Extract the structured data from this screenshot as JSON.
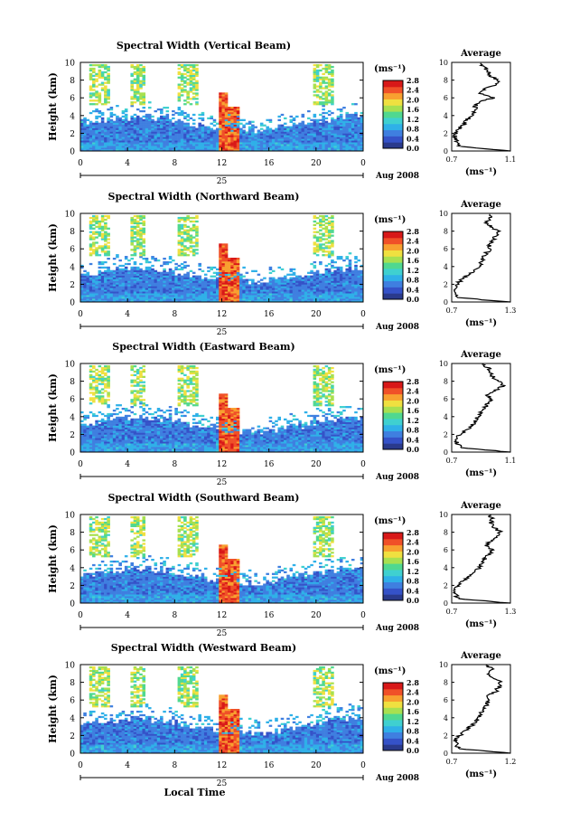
{
  "figure": {
    "day_label": "25",
    "month_year_label": "Aug 2008",
    "x_axis_label": "Local Time",
    "y_axis_label": "Height (km)",
    "colorbar_unit": "(ms⁻¹)",
    "colorbar_ticks": [
      "2.8",
      "2.4",
      "2.0",
      "1.6",
      "1.2",
      "0.8",
      "0.4",
      "0.0"
    ],
    "colorbar_colors": [
      "#2a3a8c",
      "#3552c8",
      "#3f7fe0",
      "#2fb0e8",
      "#3fd0d0",
      "#50d890",
      "#a8e050",
      "#f0e040",
      "#f8a030",
      "#f05028",
      "#d81818"
    ],
    "avg_title": "Average",
    "avg_unit": "(ms⁻¹)",
    "background_color": "#ffffff",
    "data_color": "#3552c8"
  },
  "chart_data": [
    {
      "type": "heatmap",
      "title": "Spectral Width (Vertical Beam)",
      "xlabel": "Local Time",
      "ylabel": "Height (km)",
      "x_ticks": [
        "0",
        "4",
        "8",
        "12",
        "16",
        "20",
        "0"
      ],
      "xlim": [
        0,
        24
      ],
      "y_ticks": [
        "0",
        "2",
        "4",
        "6",
        "8",
        "10"
      ],
      "ylim": [
        0,
        10
      ],
      "colorbar_range": [
        0.0,
        2.8
      ],
      "profile": {
        "xlabel": "(ms⁻¹)",
        "x_ticks": [
          "0.7",
          "1.1"
        ],
        "xlim": [
          0.7,
          1.1
        ],
        "y_ticks": [
          "0",
          "2",
          "4",
          "6",
          "8",
          "10"
        ],
        "ylim": [
          0,
          10
        ],
        "heights": [
          0,
          0.5,
          1,
          1.5,
          2,
          2.5,
          3,
          3.5,
          4,
          4.5,
          5,
          5.5,
          6,
          6.5,
          7,
          7.5,
          8,
          8.5,
          9,
          9.5,
          10
        ],
        "values": [
          1.1,
          0.76,
          0.74,
          0.72,
          0.73,
          0.75,
          0.78,
          0.8,
          0.84,
          0.86,
          0.86,
          0.88,
          0.98,
          0.9,
          0.92,
          1.0,
          1.02,
          0.96,
          0.95,
          0.92,
          0.88
        ]
      }
    },
    {
      "type": "heatmap",
      "title": "Spectral Width (Northward Beam)",
      "xlabel": "Local Time",
      "ylabel": "Height (km)",
      "x_ticks": [
        "0",
        "4",
        "8",
        "12",
        "16",
        "20",
        "0"
      ],
      "xlim": [
        0,
        24
      ],
      "y_ticks": [
        "0",
        "2",
        "4",
        "6",
        "8",
        "10"
      ],
      "ylim": [
        0,
        10
      ],
      "colorbar_range": [
        0.0,
        2.8
      ],
      "profile": {
        "xlabel": "(ms⁻¹)",
        "x_ticks": [
          "0.7",
          "1.3"
        ],
        "xlim": [
          0.7,
          1.3
        ],
        "y_ticks": [
          "0",
          "2",
          "4",
          "6",
          "8",
          "10"
        ],
        "ylim": [
          0,
          10
        ],
        "heights": [
          0,
          0.5,
          1,
          1.5,
          2,
          2.5,
          3,
          3.5,
          4,
          4.5,
          5,
          5.5,
          6,
          6.5,
          7,
          7.5,
          8,
          8.5,
          9,
          9.5,
          10
        ],
        "values": [
          1.3,
          0.76,
          0.74,
          0.72,
          0.75,
          0.8,
          0.86,
          0.92,
          0.98,
          1.0,
          1.02,
          1.05,
          1.1,
          1.08,
          1.12,
          1.15,
          1.18,
          1.1,
          1.05,
          1.1,
          1.1
        ]
      }
    },
    {
      "type": "heatmap",
      "title": "Spectral Width (Eastward Beam)",
      "xlabel": "Local Time",
      "ylabel": "Height (km)",
      "x_ticks": [
        "0",
        "4",
        "8",
        "12",
        "16",
        "20",
        "0"
      ],
      "xlim": [
        0,
        24
      ],
      "y_ticks": [
        "0",
        "2",
        "4",
        "6",
        "8",
        "10"
      ],
      "ylim": [
        0,
        10
      ],
      "colorbar_range": [
        0.0,
        2.8
      ],
      "profile": {
        "xlabel": "(ms⁻¹)",
        "x_ticks": [
          "0.7",
          "1.1"
        ],
        "xlim": [
          0.7,
          1.1
        ],
        "y_ticks": [
          "0",
          "2",
          "4",
          "6",
          "8",
          "10"
        ],
        "ylim": [
          0,
          10
        ],
        "heights": [
          0,
          0.5,
          1,
          1.5,
          2,
          2.5,
          3,
          3.5,
          4,
          4.5,
          5,
          5.5,
          6,
          6.5,
          7,
          7.5,
          8,
          8.5,
          9,
          9.5,
          10
        ],
        "values": [
          1.1,
          0.76,
          0.74,
          0.73,
          0.76,
          0.8,
          0.84,
          0.86,
          0.88,
          0.9,
          0.92,
          0.95,
          0.98,
          0.94,
          1.0,
          1.05,
          1.02,
          0.98,
          0.96,
          0.95,
          0.9
        ]
      }
    },
    {
      "type": "heatmap",
      "title": "Spectral Width (Southward Beam)",
      "xlabel": "Local Time",
      "ylabel": "Height (km)",
      "x_ticks": [
        "0",
        "4",
        "8",
        "12",
        "16",
        "20",
        "0"
      ],
      "xlim": [
        0,
        24
      ],
      "y_ticks": [
        "0",
        "2",
        "4",
        "6",
        "8",
        "10"
      ],
      "ylim": [
        0,
        10
      ],
      "colorbar_range": [
        0.0,
        2.8
      ],
      "profile": {
        "xlabel": "(ms⁻¹)",
        "x_ticks": [
          "0.7",
          "1.3"
        ],
        "xlim": [
          0.7,
          1.3
        ],
        "y_ticks": [
          "0",
          "2",
          "4",
          "6",
          "8",
          "10"
        ],
        "ylim": [
          0,
          10
        ],
        "heights": [
          0,
          0.5,
          1,
          1.5,
          2,
          2.5,
          3,
          3.5,
          4,
          4.5,
          5,
          5.5,
          6,
          6.5,
          7,
          7.5,
          8,
          8.5,
          9,
          9.5,
          10
        ],
        "values": [
          1.3,
          0.76,
          0.74,
          0.72,
          0.76,
          0.82,
          0.88,
          0.94,
          0.98,
          1.0,
          1.04,
          1.08,
          1.12,
          1.05,
          1.1,
          1.15,
          1.2,
          1.14,
          1.1,
          1.12,
          1.08
        ]
      }
    },
    {
      "type": "heatmap",
      "title": "Spectral Width (Westward Beam)",
      "xlabel": "Local Time",
      "ylabel": "Height (km)",
      "x_ticks": [
        "0",
        "4",
        "8",
        "12",
        "16",
        "20",
        "0"
      ],
      "xlim": [
        0,
        24
      ],
      "y_ticks": [
        "0",
        "2",
        "4",
        "6",
        "8",
        "10"
      ],
      "ylim": [
        0,
        10
      ],
      "colorbar_range": [
        0.0,
        2.8
      ],
      "profile": {
        "xlabel": "(ms⁻¹)",
        "x_ticks": [
          "0.7",
          "1.2"
        ],
        "xlim": [
          0.7,
          1.2
        ],
        "y_ticks": [
          "0",
          "2",
          "4",
          "6",
          "8",
          "10"
        ],
        "ylim": [
          0,
          10
        ],
        "heights": [
          0,
          0.5,
          1,
          1.5,
          2,
          2.5,
          3,
          3.5,
          4,
          4.5,
          5,
          5.5,
          6,
          6.5,
          7,
          7.5,
          8,
          8.5,
          9,
          9.5,
          10
        ],
        "values": [
          1.2,
          0.76,
          0.74,
          0.73,
          0.77,
          0.82,
          0.86,
          0.9,
          0.93,
          0.95,
          0.98,
          1.0,
          1.02,
          1.0,
          1.08,
          1.1,
          1.12,
          1.05,
          1.0,
          1.04,
          1.0
        ]
      }
    }
  ]
}
